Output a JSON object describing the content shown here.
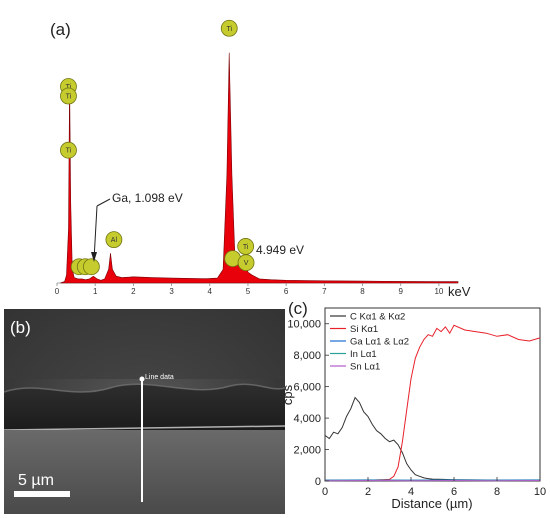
{
  "chart_data": [
    {
      "type": "area",
      "panel": "(a)",
      "xlabel": "keV",
      "ylabel": "",
      "xlim": [
        0,
        10.5
      ],
      "xticks": [
        "0",
        "1",
        "2",
        "3",
        "4",
        "5",
        "6",
        "7",
        "8",
        "9",
        "10"
      ],
      "series": [
        {
          "color": "#e8000a",
          "x": [
            0.1,
            0.2,
            0.25,
            0.3,
            0.33,
            0.36,
            0.4,
            0.45,
            0.55,
            0.65,
            0.75,
            0.85,
            0.95,
            1.05,
            1.15,
            1.25,
            1.35,
            1.4,
            1.45,
            1.55,
            1.7,
            2.0,
            2.5,
            3.0,
            3.5,
            3.9,
            4.2,
            4.35,
            4.45,
            4.51,
            4.58,
            4.66,
            4.75,
            4.85,
            4.93,
            5.0,
            5.1,
            5.3,
            5.6,
            6.0,
            7.0,
            8.0,
            9.0,
            10.0,
            10.5
          ],
          "y": [
            0.1,
            0.5,
            3,
            20,
            75,
            30,
            5,
            2,
            1.5,
            1.5,
            1.2,
            1.5,
            2.5,
            1.5,
            1,
            1.5,
            5,
            11,
            5,
            2.5,
            2.0,
            2.3,
            2.0,
            1.8,
            1.7,
            1.6,
            1.8,
            5,
            40,
            85,
            40,
            9,
            9,
            5,
            8,
            4,
            3,
            1.5,
            1.2,
            1.0,
            0.8,
            0.7,
            0.6,
            0.5,
            0.5
          ]
        }
      ],
      "element_markers": [
        {
          "symbol": "Ti",
          "x": 0.3,
          "y": 72.5
        },
        {
          "symbol": "Ti",
          "x": 0.3,
          "y": 69
        },
        {
          "symbol": "Ti",
          "x": 0.3,
          "y": 49
        },
        {
          "symbol": "Ti",
          "x": 4.51,
          "y": 94
        },
        {
          "symbol": "Al",
          "x": 1.49,
          "y": 16
        },
        {
          "symbol": "",
          "x": 0.58,
          "y": 6
        },
        {
          "symbol": "",
          "x": 0.74,
          "y": 6
        },
        {
          "symbol": "",
          "x": 0.9,
          "y": 6
        },
        {
          "symbol": "",
          "x": 4.6,
          "y": 9
        },
        {
          "symbol": "Ti",
          "x": 4.94,
          "y": 13.5
        },
        {
          "symbol": "V",
          "x": 4.95,
          "y": 7.5
        }
      ],
      "annotations": [
        {
          "text": "Ga, 1.098 eV",
          "x": 1.098
        },
        {
          "text": "4.949 eV",
          "x": 4.949
        }
      ]
    },
    {
      "type": "image",
      "panel": "(b)",
      "line_label": "Line data",
      "scale_bar": "5 µm"
    },
    {
      "type": "line",
      "panel": "(c)",
      "xlabel": "Distance (µm)",
      "ylabel": "cps",
      "xlim": [
        0,
        10
      ],
      "ylim": [
        0,
        11000
      ],
      "xticks": [
        0,
        2,
        4,
        6,
        8,
        10
      ],
      "yticks": [
        0,
        2000,
        4000,
        6000,
        8000,
        10000
      ],
      "ytick_labels": [
        "0",
        "2,000",
        "4,000",
        "6,000",
        "8,000",
        "10,000"
      ],
      "legend_position": "top-left",
      "series": [
        {
          "name": "C Kα1 & Kα2",
          "color": "#333333",
          "x": [
            0.0,
            0.2,
            0.4,
            0.6,
            0.8,
            1.0,
            1.2,
            1.4,
            1.6,
            1.8,
            2.0,
            2.2,
            2.4,
            2.6,
            2.8,
            3.0,
            3.2,
            3.4,
            3.6,
            3.8,
            4.0,
            4.2,
            4.4,
            4.6,
            4.8,
            5.0,
            5.5,
            6.0,
            7.0,
            8.0,
            9.0,
            10.0
          ],
          "y": [
            2900,
            2700,
            3100,
            3000,
            3400,
            4100,
            4600,
            5300,
            5000,
            4400,
            4100,
            3600,
            3200,
            3000,
            2700,
            2500,
            2600,
            2300,
            1800,
            1100,
            700,
            400,
            300,
            200,
            150,
            120,
            100,
            80,
            70,
            60,
            60,
            60
          ]
        },
        {
          "name": "Si Kα1",
          "color": "#e8202a",
          "x": [
            0.0,
            1.0,
            2.0,
            3.0,
            3.2,
            3.4,
            3.6,
            3.8,
            4.0,
            4.2,
            4.4,
            4.6,
            4.8,
            5.0,
            5.2,
            5.4,
            5.6,
            5.8,
            6.0,
            6.5,
            7.0,
            7.5,
            8.0,
            8.5,
            9.0,
            9.5,
            10.0
          ],
          "y": [
            50,
            50,
            50,
            100,
            300,
            900,
            2500,
            4500,
            6500,
            7800,
            8500,
            9000,
            9300,
            9200,
            9700,
            9500,
            9800,
            9400,
            9900,
            9600,
            9500,
            9400,
            9200,
            9300,
            9000,
            8900,
            9100
          ]
        },
        {
          "name": "Ga Lα1 & Lα2",
          "color": "#1f6fd0",
          "x": [
            0,
            2,
            4,
            6,
            8,
            10
          ],
          "y": [
            60,
            70,
            60,
            70,
            60,
            70
          ]
        },
        {
          "name": "In Lα1",
          "color": "#2aa198",
          "x": [
            0,
            2,
            4,
            6,
            8,
            10
          ],
          "y": [
            40,
            50,
            40,
            50,
            40,
            50
          ]
        },
        {
          "name": "Sn Lα1",
          "color": "#b05cc8",
          "x": [
            0,
            2,
            4,
            6,
            8,
            10
          ],
          "y": [
            20,
            30,
            20,
            30,
            20,
            30
          ]
        }
      ]
    }
  ]
}
